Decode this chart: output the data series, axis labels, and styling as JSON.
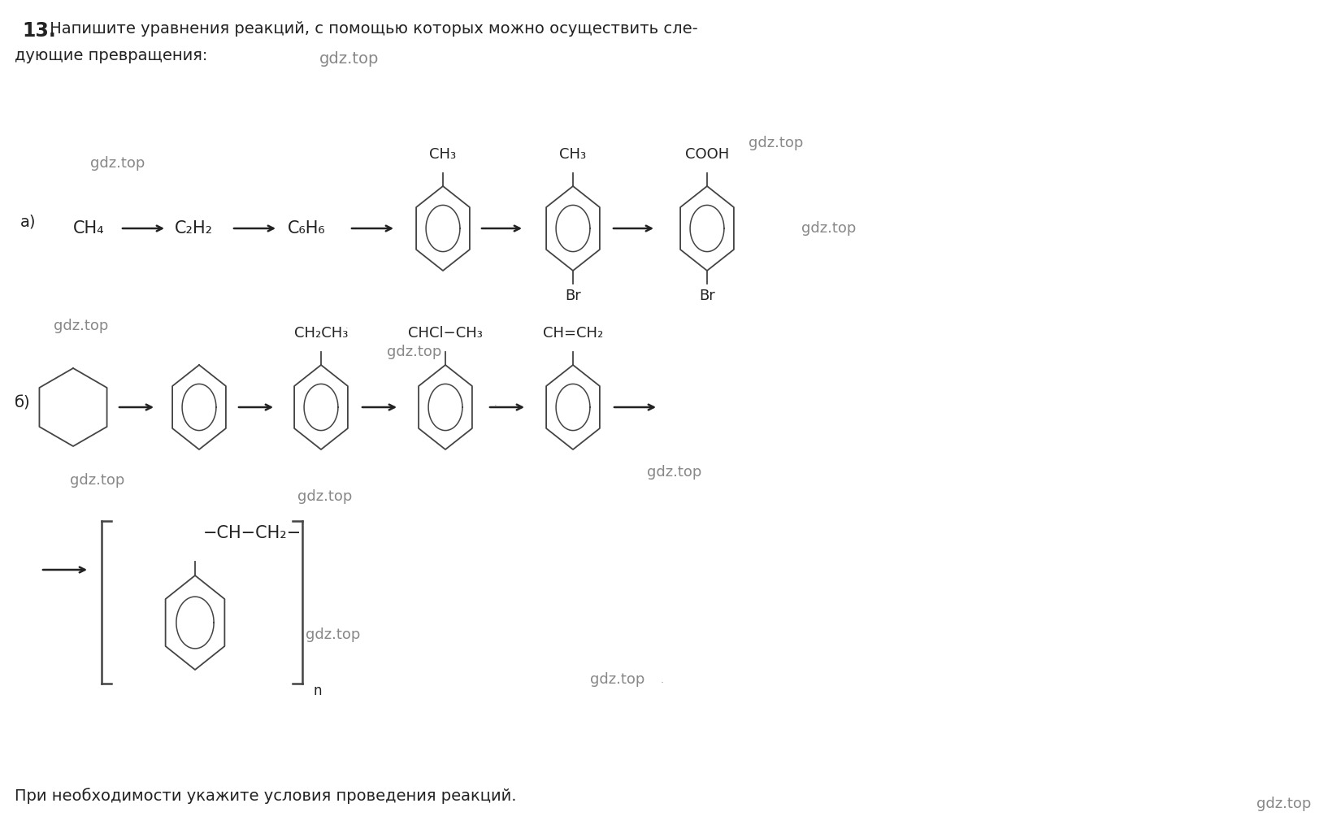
{
  "bg_color": "#ffffff",
  "mol_color": "#444444",
  "text_color": "#222222",
  "arrow_color": "#222222",
  "wm_color": "#888888",
  "title_bold": "13.",
  "title_line1": " Напишите уравнения реакций, с помощью которых можно осуществить сле-",
  "title_line2": "дующие превращения:",
  "footer": "При необходимости укажите условия проведения реакций.",
  "label_a": "а)",
  "label_b": "б)",
  "ch4": "CH₄",
  "c2h2": "C₂H₂",
  "c6h6": "C₆H₆",
  "ch3": "CH₃",
  "cooh": "COOH",
  "br": "Br",
  "ch2ch3": "CH₂CH₃",
  "chclch3": "CHCl−CH₃",
  "chch2": "CH=CH₂",
  "chain": "−CH−CH₂−",
  "n_sub": "n"
}
